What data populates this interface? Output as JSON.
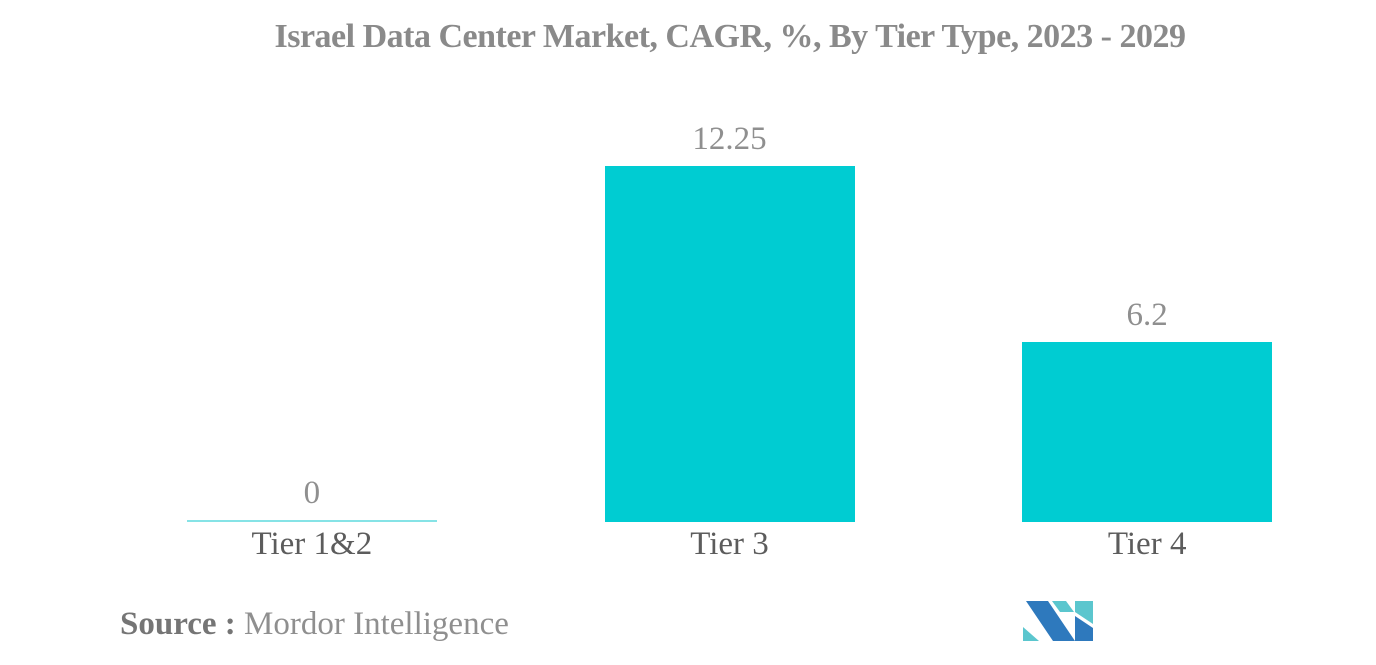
{
  "header": {
    "title": "Israel Data Center Market, CAGR, %, By Tier Type, 2023 - 2029"
  },
  "footer": {
    "source_label": "Source :",
    "source_name": "Mordor Intelligence",
    "logo_icon": "mordor-intelligence-logo"
  },
  "colors": {
    "bar": "#00ccd2",
    "zero_bar_line": "#86e3e6",
    "title_text": "#8a8a8a",
    "value_text": "#8f8f8f",
    "category_text": "#5c5c5c",
    "source_label_text": "#757575",
    "source_name_text": "#8f8f8f",
    "logo_blue": "#2e79bd",
    "logo_teal": "#5bc6ce"
  },
  "chart_data": {
    "type": "bar",
    "title": "Israel Data Center Market, CAGR, %, By Tier Type, 2023 - 2029",
    "categories": [
      "Tier 1&2",
      "Tier 3",
      "Tier 4"
    ],
    "values": [
      0,
      12.25,
      6.2
    ],
    "value_labels": [
      "0",
      "12.25",
      "6.2"
    ],
    "unit": "%",
    "xlabel": "",
    "ylabel": "",
    "ylim": [
      0,
      12.25
    ],
    "grid": false,
    "axes_visible": false,
    "legend": null,
    "orientation": "vertical",
    "bar_color": "#00ccd2"
  }
}
